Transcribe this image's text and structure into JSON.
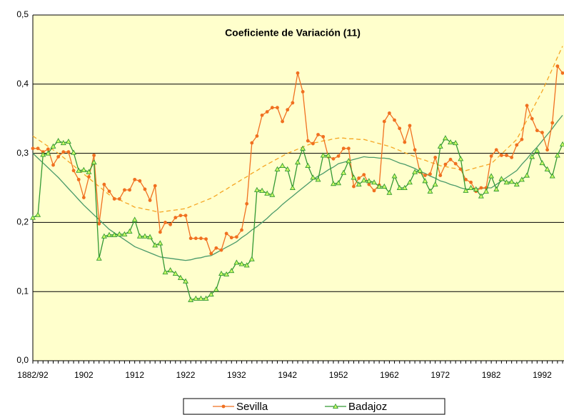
{
  "chart_data": {
    "type": "line",
    "title": "Coeficiente de Variación (11)",
    "categories": [
      "1882/92",
      null,
      null,
      null,
      null,
      null,
      null,
      null,
      null,
      null,
      "1902",
      null,
      null,
      null,
      null,
      null,
      null,
      null,
      null,
      null,
      "1912",
      null,
      null,
      null,
      null,
      null,
      null,
      null,
      null,
      null,
      "1922",
      null,
      null,
      null,
      null,
      null,
      null,
      null,
      null,
      null,
      "1932",
      null,
      null,
      null,
      null,
      null,
      null,
      null,
      null,
      null,
      "1942",
      null,
      null,
      null,
      null,
      null,
      null,
      null,
      null,
      null,
      "1952",
      null,
      null,
      null,
      null,
      null,
      null,
      null,
      null,
      null,
      "1962",
      null,
      null,
      null,
      null,
      null,
      null,
      null,
      null,
      null,
      "1972",
      null,
      null,
      null,
      null,
      null,
      null,
      null,
      null,
      null,
      "1982",
      null,
      null,
      null,
      null,
      null,
      null,
      null,
      null,
      null,
      "1992",
      null,
      null,
      null,
      null
    ],
    "series": [
      {
        "name": "Sevilla",
        "color": "#f07020",
        "marker": "circle",
        "values": [
          0.307,
          0.307,
          0.302,
          0.306,
          0.283,
          0.295,
          0.302,
          0.302,
          0.275,
          0.262,
          0.236,
          0.266,
          0.297,
          0.198,
          0.255,
          0.245,
          0.234,
          0.234,
          0.247,
          0.247,
          0.262,
          0.26,
          0.248,
          0.232,
          0.253,
          0.186,
          0.2,
          0.197,
          0.207,
          0.21,
          0.21,
          0.177,
          0.177,
          0.177,
          0.176,
          0.155,
          0.163,
          0.16,
          0.184,
          0.178,
          0.179,
          0.189,
          0.227,
          0.315,
          0.325,
          0.355,
          0.36,
          0.366,
          0.366,
          0.346,
          0.363,
          0.373,
          0.416,
          0.389,
          0.318,
          0.314,
          0.327,
          0.324,
          0.295,
          0.292,
          0.296,
          0.307,
          0.307,
          0.252,
          0.264,
          0.269,
          0.255,
          0.246,
          0.254,
          0.346,
          0.358,
          0.348,
          0.336,
          0.316,
          0.34,
          0.305,
          0.273,
          0.268,
          0.27,
          0.294,
          0.268,
          0.284,
          0.291,
          0.285,
          0.277,
          0.262,
          0.258,
          0.245,
          0.25,
          0.25,
          0.296,
          0.305,
          0.297,
          0.297,
          0.294,
          0.312,
          0.32,
          0.369,
          0.35,
          0.333,
          0.33,
          0.305,
          0.344,
          0.426,
          0.416
        ]
      },
      {
        "name": "Badajoz",
        "color": "#339933",
        "marker": "triangle",
        "marker_fill": "#ccff66",
        "values": [
          0.207,
          0.211,
          0.298,
          0.3,
          0.31,
          0.318,
          0.315,
          0.317,
          0.301,
          0.275,
          0.276,
          0.273,
          0.287,
          0.148,
          0.18,
          0.182,
          0.182,
          0.183,
          0.183,
          0.187,
          0.204,
          0.18,
          0.18,
          0.179,
          0.167,
          0.17,
          0.128,
          0.131,
          0.126,
          0.12,
          0.115,
          0.088,
          0.09,
          0.09,
          0.09,
          0.096,
          0.103,
          0.126,
          0.125,
          0.13,
          0.142,
          0.14,
          0.138,
          0.147,
          0.247,
          0.246,
          0.242,
          0.24,
          0.277,
          0.282,
          0.277,
          0.25,
          0.287,
          0.307,
          0.282,
          0.265,
          0.262,
          0.297,
          0.297,
          0.256,
          0.257,
          0.272,
          0.289,
          0.265,
          0.255,
          0.261,
          0.26,
          0.258,
          0.252,
          0.252,
          0.243,
          0.267,
          0.25,
          0.25,
          0.258,
          0.273,
          0.275,
          0.26,
          0.245,
          0.255,
          0.31,
          0.322,
          0.316,
          0.315,
          0.292,
          0.246,
          0.25,
          0.248,
          0.238,
          0.245,
          0.267,
          0.248,
          0.263,
          0.258,
          0.259,
          0.255,
          0.262,
          0.268,
          0.295,
          0.304,
          0.286,
          0.277,
          0.267,
          0.297,
          0.313
        ]
      }
    ],
    "trendlines": [
      {
        "color": "#f5a623",
        "dashed": true,
        "values": [
          0.325,
          0.32,
          0.315,
          0.31,
          0.305,
          0.3,
          0.294,
          0.288,
          0.282,
          0.276,
          0.27,
          0.264,
          0.258,
          0.252,
          0.246,
          0.24,
          0.236,
          0.233,
          0.229,
          0.226,
          0.222,
          0.221,
          0.219,
          0.218,
          0.216,
          0.215,
          0.216,
          0.217,
          0.218,
          0.219,
          0.22,
          0.223,
          0.226,
          0.229,
          0.232,
          0.235,
          0.239,
          0.244,
          0.248,
          0.253,
          0.257,
          0.262,
          0.266,
          0.271,
          0.275,
          0.28,
          0.284,
          0.288,
          0.292,
          0.296,
          0.3,
          0.303,
          0.306,
          0.309,
          0.312,
          0.315,
          0.316,
          0.318,
          0.319,
          0.321,
          0.322,
          0.322,
          0.321,
          0.321,
          0.32,
          0.32,
          0.318,
          0.316,
          0.314,
          0.312,
          0.31,
          0.307,
          0.304,
          0.301,
          0.298,
          0.295,
          0.292,
          0.29,
          0.287,
          0.285,
          0.282,
          0.281,
          0.279,
          0.278,
          0.276,
          0.275,
          0.277,
          0.279,
          0.281,
          0.283,
          0.285,
          0.292,
          0.299,
          0.306,
          0.313,
          0.32,
          0.334,
          0.348,
          0.362,
          0.376,
          0.39,
          0.406,
          0.422,
          0.439,
          0.455
        ]
      },
      {
        "color": "#4a9a6a",
        "dashed": false,
        "values": [
          0.3,
          0.293,
          0.286,
          0.279,
          0.272,
          0.265,
          0.257,
          0.249,
          0.241,
          0.233,
          0.225,
          0.218,
          0.211,
          0.204,
          0.197,
          0.19,
          0.185,
          0.18,
          0.175,
          0.17,
          0.165,
          0.162,
          0.159,
          0.156,
          0.153,
          0.15,
          0.149,
          0.148,
          0.147,
          0.146,
          0.145,
          0.146,
          0.148,
          0.149,
          0.151,
          0.152,
          0.156,
          0.16,
          0.164,
          0.168,
          0.172,
          0.178,
          0.183,
          0.189,
          0.194,
          0.2,
          0.206,
          0.213,
          0.219,
          0.226,
          0.232,
          0.238,
          0.244,
          0.25,
          0.256,
          0.262,
          0.267,
          0.271,
          0.276,
          0.28,
          0.285,
          0.287,
          0.289,
          0.291,
          0.293,
          0.295,
          0.294,
          0.294,
          0.293,
          0.293,
          0.292,
          0.289,
          0.286,
          0.284,
          0.281,
          0.278,
          0.274,
          0.271,
          0.267,
          0.264,
          0.26,
          0.258,
          0.255,
          0.253,
          0.25,
          0.248,
          0.248,
          0.249,
          0.249,
          0.25,
          0.25,
          0.255,
          0.26,
          0.265,
          0.27,
          0.275,
          0.284,
          0.292,
          0.301,
          0.309,
          0.318,
          0.327,
          0.336,
          0.346,
          0.355
        ]
      }
    ],
    "ylim": [
      0,
      0.5
    ],
    "yticks": [
      {
        "value": 0,
        "label": "0,0"
      },
      {
        "value": 0.1,
        "label": "0,1"
      },
      {
        "value": 0.2,
        "label": "0,2"
      },
      {
        "value": 0.3,
        "label": "0,3"
      },
      {
        "value": 0.4,
        "label": "0,4"
      },
      {
        "value": 0.5,
        "label": "0,5"
      }
    ],
    "grid": true,
    "plot_background": "#ffffcc",
    "legend": "bottom"
  }
}
